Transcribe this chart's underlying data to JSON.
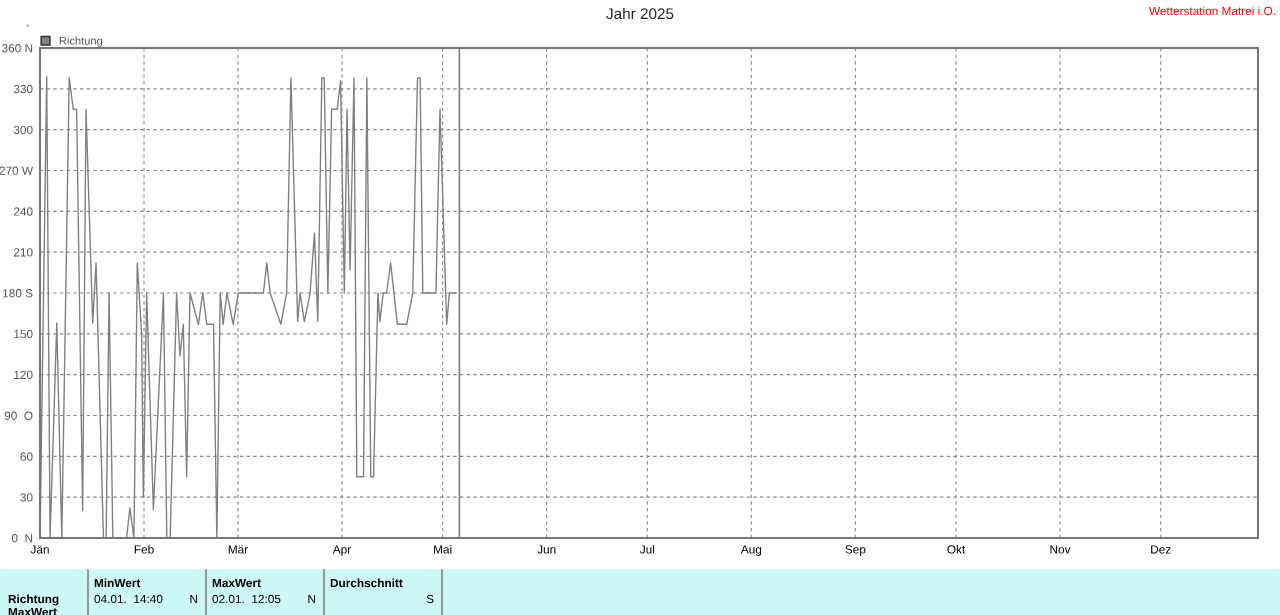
{
  "chart_data": {
    "type": "line",
    "title": "Jahr 2025",
    "ylabel": "°",
    "annotations": [
      "Wetterstation Matrei i.O.",
      "Richtung",
      "MaxWert",
      "MinWert",
      "04.01.  14:40",
      "N",
      "MaxWert",
      "02.01.  12:05",
      "N",
      "Durchschnitt",
      "S"
    ],
    "series": [
      {
        "name": "Richtung",
        "color": "#808080",
        "x": [
          "2025-01-01T00:00",
          "2025-01-03T00:00",
          "2025-01-04T00:00",
          "2025-01-06T00:00",
          "2025-01-07T12:00",
          "2025-01-09T17:00",
          "2025-01-10T22:00",
          "2025-01-11T22:00",
          "2025-01-13T17:00",
          "2025-01-14T17:00",
          "2025-01-16T17:00",
          "2025-01-17T17:00",
          "2025-01-19T22:00",
          "2025-01-20T17:00",
          "2025-01-21T14:00",
          "2025-01-22T17:00",
          "2025-01-26T19:00",
          "2025-01-27T19:00",
          "2025-01-29T00:00",
          "2025-01-30T00:00",
          "2025-01-31T07:00",
          "2025-01-31T19:00",
          "2025-02-01T19:00",
          "2025-02-03T19:00",
          "2025-02-06T19:00",
          "2025-02-07T19:00",
          "2025-02-08T19:00",
          "2025-02-10T17:00",
          "2025-02-11T17:00",
          "2025-02-12T17:00",
          "2025-02-13T17:00",
          "2025-02-14T17:00",
          "2025-02-17T05:00",
          "2025-02-18T12:00",
          "2025-02-19T17:00",
          "2025-02-21T17:00",
          "2025-02-22T17:00",
          "2025-02-23T17:00",
          "2025-02-24T14:00",
          "2025-02-25T17:00",
          "2025-02-27T14:00",
          "2025-03-01T02:00",
          "2025-03-08T14:00",
          "2025-03-09T14:00",
          "2025-03-10T14:00",
          "2025-03-13T19:00",
          "2025-03-15T12:00",
          "2025-03-16T19:00",
          "2025-03-18T19:00",
          "2025-03-19T12:00",
          "2025-03-20T19:00",
          "2025-03-22T12:00",
          "2025-03-23T19:00",
          "2025-03-24T19:00",
          "2025-03-26T00:00",
          "2025-03-26T17:00",
          "2025-03-27T19:00",
          "2025-03-28T22:00",
          "2025-03-30T14:00",
          "2025-03-31T14:00",
          "2025-04-01T17:00",
          "2025-04-02T12:00",
          "2025-04-03T10:00",
          "2025-04-04T14:00",
          "2025-04-05T10:00",
          "2025-04-07T10:00",
          "2025-04-08T10:00",
          "2025-04-09T14:00",
          "2025-04-10T10:00",
          "2025-04-11T17:00",
          "2025-04-12T07:00",
          "2025-04-13T07:00",
          "2025-04-14T07:00",
          "2025-04-15T12:00",
          "2025-04-17T12:00",
          "2025-04-20T07:00",
          "2025-04-22T02:00",
          "2025-04-23T12:00",
          "2025-04-24T07:00",
          "2025-04-25T02:00",
          "2025-04-29T00:00",
          "2025-04-30T05:00",
          "2025-05-02T05:00",
          "2025-05-03T00:00",
          "2025-05-05T00:00"
        ],
        "values": [
          0,
          339,
          0,
          158,
          0,
          338,
          315,
          315,
          20,
          315,
          158,
          202,
          0,
          0,
          180,
          0,
          0,
          22,
          0,
          202,
          150,
          30,
          180,
          21,
          180,
          0,
          0,
          180,
          134,
          157,
          45,
          180,
          157,
          180,
          157,
          157,
          0,
          180,
          157,
          180,
          157,
          180,
          180,
          202,
          180,
          157,
          180,
          338,
          159,
          180,
          159,
          180,
          224,
          159,
          338,
          338,
          180,
          315,
          315,
          336,
          180,
          315,
          197,
          338,
          45,
          45,
          338,
          45,
          45,
          180,
          159,
          180,
          180,
          202,
          157,
          157,
          180,
          338,
          338,
          180,
          180,
          315,
          157,
          180,
          180
        ]
      }
    ],
    "xlim": [
      "2025-01-01",
      "2025-12-30"
    ],
    "xticks": [
      {
        "value": "2025-01-01",
        "label": "Jän"
      },
      {
        "value": "2025-02-01",
        "label": "Feb"
      },
      {
        "value": "2025-03-01",
        "label": "Mär"
      },
      {
        "value": "2025-04-01",
        "label": "Apr"
      },
      {
        "value": "2025-05-01",
        "label": "Mai"
      },
      {
        "value": "2025-06-01",
        "label": "Jun"
      },
      {
        "value": "2025-07-01",
        "label": "Jul"
      },
      {
        "value": "2025-08-01",
        "label": "Aug"
      },
      {
        "value": "2025-09-01",
        "label": "Sep"
      },
      {
        "value": "2025-10-01",
        "label": "Okt"
      },
      {
        "value": "2025-11-01",
        "label": "Nov"
      },
      {
        "value": "2025-12-01",
        "label": "Dez"
      }
    ],
    "ylim": [
      0,
      360
    ],
    "yticks": [
      {
        "value": 0,
        "label": "0  N"
      },
      30,
      60,
      {
        "value": 90,
        "label": "90  O"
      },
      120,
      150,
      {
        "value": 180,
        "label": "180 S"
      },
      210,
      240,
      {
        "value": 270,
        "label": "270 W"
      },
      300,
      330,
      {
        "value": 360,
        "label": "360 N"
      }
    ],
    "ref_lines": [
      {
        "axis": "x",
        "value": "2025-05-06",
        "color": "#808080"
      }
    ],
    "grid": true,
    "legend": "top left",
    "marker": "none",
    "line_style": "solid"
  }
}
